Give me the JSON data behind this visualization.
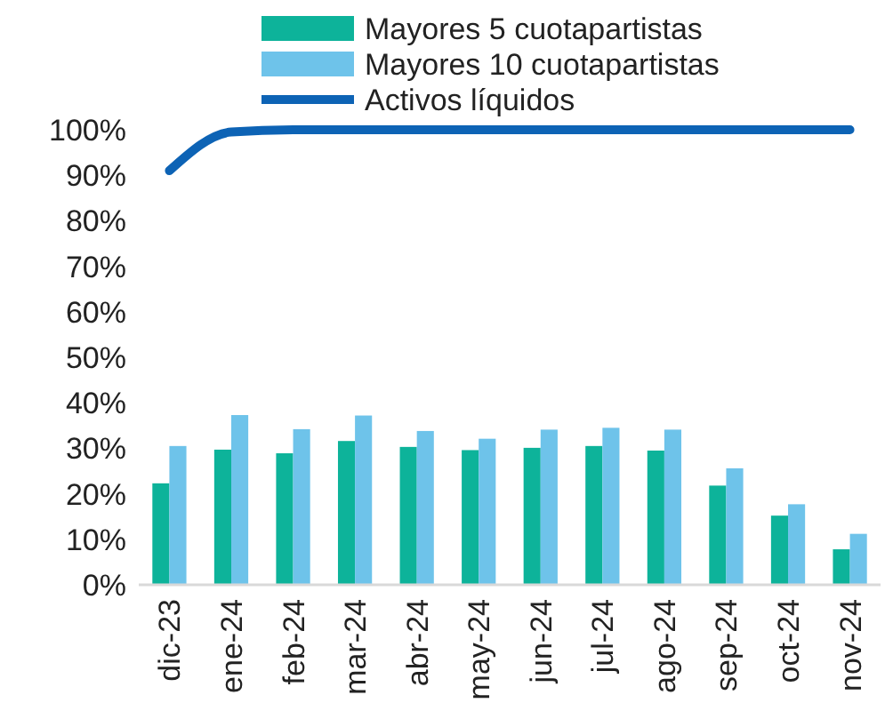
{
  "chart_data": {
    "type": "bar",
    "categories": [
      "dic-23",
      "ene-24",
      "feb-24",
      "mar-24",
      "abr-24",
      "may-24",
      "jun-24",
      "jul-24",
      "ago-24",
      "sep-24",
      "oct-24",
      "nov-24"
    ],
    "series": [
      {
        "name": "Mayores 5 cuotapartistas",
        "color": "#0db39a",
        "values": [
          22.3,
          29.7,
          28.9,
          31.6,
          30.3,
          29.6,
          30.1,
          30.5,
          29.5,
          21.8,
          15.2,
          7.8
        ]
      },
      {
        "name": "Mayores 10 cuotapartistas",
        "color": "#6ec3ea",
        "values": [
          30.5,
          37.3,
          34.2,
          37.2,
          33.8,
          32.1,
          34.1,
          34.5,
          34.1,
          25.6,
          17.7,
          11.2
        ]
      },
      {
        "name": "Activos líquidos",
        "type": "line",
        "color": "#0d63b5",
        "values": [
          91,
          99.5,
          100,
          100,
          100,
          100,
          100,
          100,
          100,
          100,
          100,
          100
        ]
      }
    ],
    "ylim": [
      0,
      100
    ],
    "yticks": [
      {
        "value": 0,
        "label": "0%"
      },
      {
        "value": 10,
        "label": "10%"
      },
      {
        "value": 20,
        "label": "20%"
      },
      {
        "value": 30,
        "label": "30%"
      },
      {
        "value": 40,
        "label": "40%"
      },
      {
        "value": 50,
        "label": "50%"
      },
      {
        "value": 60,
        "label": "60%"
      },
      {
        "value": 70,
        "label": "70%"
      },
      {
        "value": 80,
        "label": "80%"
      },
      {
        "value": 90,
        "label": "90%"
      },
      {
        "value": 100,
        "label": "100%"
      }
    ],
    "legend": "top",
    "grid": false
  }
}
